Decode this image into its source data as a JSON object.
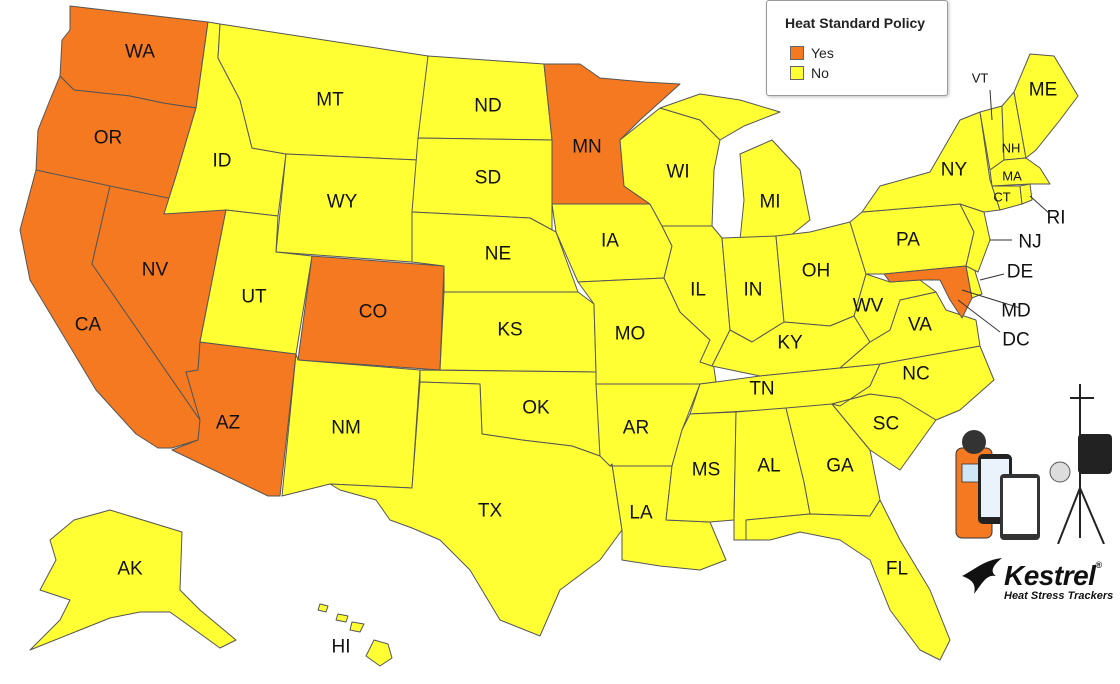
{
  "colors": {
    "yes": "#f47920",
    "no": "#ffff33",
    "border": "#555555"
  },
  "legend": {
    "title": "Heat Standard Policy",
    "items": [
      {
        "label": "Yes",
        "color": "#f47920"
      },
      {
        "label": "No",
        "color": "#ffff33"
      }
    ]
  },
  "states": [
    {
      "abbr": "WA",
      "policy": "Yes"
    },
    {
      "abbr": "OR",
      "policy": "Yes"
    },
    {
      "abbr": "CA",
      "policy": "Yes"
    },
    {
      "abbr": "NV",
      "policy": "Yes"
    },
    {
      "abbr": "AZ",
      "policy": "Yes"
    },
    {
      "abbr": "CO",
      "policy": "Yes"
    },
    {
      "abbr": "MN",
      "policy": "Yes"
    },
    {
      "abbr": "MD",
      "policy": "Yes"
    },
    {
      "abbr": "ID",
      "policy": "No"
    },
    {
      "abbr": "MT",
      "policy": "No"
    },
    {
      "abbr": "WY",
      "policy": "No"
    },
    {
      "abbr": "UT",
      "policy": "No"
    },
    {
      "abbr": "NM",
      "policy": "No"
    },
    {
      "abbr": "ND",
      "policy": "No"
    },
    {
      "abbr": "SD",
      "policy": "No"
    },
    {
      "abbr": "NE",
      "policy": "No"
    },
    {
      "abbr": "KS",
      "policy": "No"
    },
    {
      "abbr": "OK",
      "policy": "No"
    },
    {
      "abbr": "TX",
      "policy": "No"
    },
    {
      "abbr": "IA",
      "policy": "No"
    },
    {
      "abbr": "MO",
      "policy": "No"
    },
    {
      "abbr": "AR",
      "policy": "No"
    },
    {
      "abbr": "LA",
      "policy": "No"
    },
    {
      "abbr": "WI",
      "policy": "No"
    },
    {
      "abbr": "IL",
      "policy": "No"
    },
    {
      "abbr": "MS",
      "policy": "No"
    },
    {
      "abbr": "MI",
      "policy": "No"
    },
    {
      "abbr": "IN",
      "policy": "No"
    },
    {
      "abbr": "KY",
      "policy": "No"
    },
    {
      "abbr": "TN",
      "policy": "No"
    },
    {
      "abbr": "AL",
      "policy": "No"
    },
    {
      "abbr": "OH",
      "policy": "No"
    },
    {
      "abbr": "GA",
      "policy": "No"
    },
    {
      "abbr": "FL",
      "policy": "No"
    },
    {
      "abbr": "SC",
      "policy": "No"
    },
    {
      "abbr": "NC",
      "policy": "No"
    },
    {
      "abbr": "VA",
      "policy": "No"
    },
    {
      "abbr": "WV",
      "policy": "No"
    },
    {
      "abbr": "PA",
      "policy": "No"
    },
    {
      "abbr": "NY",
      "policy": "No"
    },
    {
      "abbr": "NJ",
      "policy": "No"
    },
    {
      "abbr": "DE",
      "policy": "No"
    },
    {
      "abbr": "DC",
      "policy": "No"
    },
    {
      "abbr": "VT",
      "policy": "No"
    },
    {
      "abbr": "NH",
      "policy": "No"
    },
    {
      "abbr": "ME",
      "policy": "No"
    },
    {
      "abbr": "MA",
      "policy": "No"
    },
    {
      "abbr": "CT",
      "policy": "No"
    },
    {
      "abbr": "RI",
      "policy": "No"
    },
    {
      "abbr": "AK",
      "policy": "No"
    },
    {
      "abbr": "HI",
      "policy": "No"
    }
  ],
  "brand": {
    "name": "Kestrel",
    "registered": "®",
    "tagline": "Heat Stress Trackers",
    "icon": "kestrel-bird-logo"
  }
}
